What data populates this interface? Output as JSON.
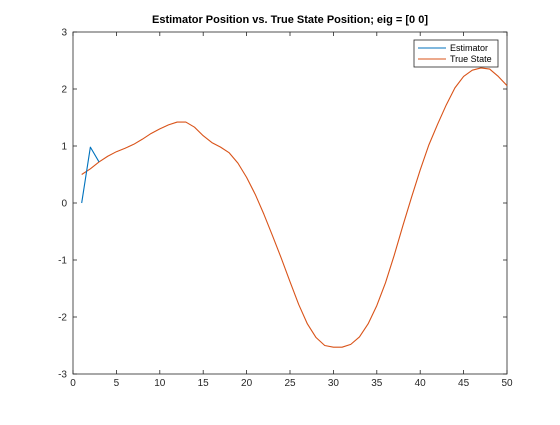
{
  "chart_data": {
    "type": "line",
    "title": "Estimator Position vs. True State Position; eig = [0 0]",
    "xlabel": "",
    "ylabel": "",
    "xlim": [
      0,
      50
    ],
    "ylim": [
      -3,
      3
    ],
    "xticks": [
      0,
      5,
      10,
      15,
      20,
      25,
      30,
      35,
      40,
      45,
      50
    ],
    "yticks": [
      -3,
      -2,
      -1,
      0,
      1,
      2,
      3
    ],
    "grid": false,
    "legend_position": "top-right",
    "series": [
      {
        "name": "Estimator",
        "color": "#0072BD",
        "x": [
          1,
          2,
          3
        ],
        "y": [
          0.0,
          0.98,
          0.72
        ]
      },
      {
        "name": "True State",
        "color": "#D95319",
        "x": [
          1,
          2,
          3,
          4,
          5,
          6,
          7,
          8,
          9,
          10,
          11,
          12,
          13,
          14,
          15,
          16,
          17,
          18,
          19,
          20,
          21,
          22,
          23,
          24,
          25,
          26,
          27,
          28,
          29,
          30,
          31,
          32,
          33,
          34,
          35,
          36,
          37,
          38,
          39,
          40,
          41,
          42,
          43,
          44,
          45,
          46,
          47,
          48,
          49,
          50
        ],
        "y": [
          0.5,
          0.6,
          0.72,
          0.82,
          0.9,
          0.96,
          1.03,
          1.12,
          1.22,
          1.3,
          1.37,
          1.42,
          1.42,
          1.33,
          1.18,
          1.06,
          0.98,
          0.88,
          0.7,
          0.45,
          0.15,
          -0.2,
          -0.58,
          -0.97,
          -1.38,
          -1.78,
          -2.12,
          -2.36,
          -2.5,
          -2.53,
          -2.53,
          -2.48,
          -2.35,
          -2.12,
          -1.8,
          -1.4,
          -0.92,
          -0.4,
          0.1,
          0.58,
          1.02,
          1.38,
          1.72,
          2.02,
          2.22,
          2.33,
          2.37,
          2.35,
          2.22,
          2.06
        ]
      }
    ]
  }
}
